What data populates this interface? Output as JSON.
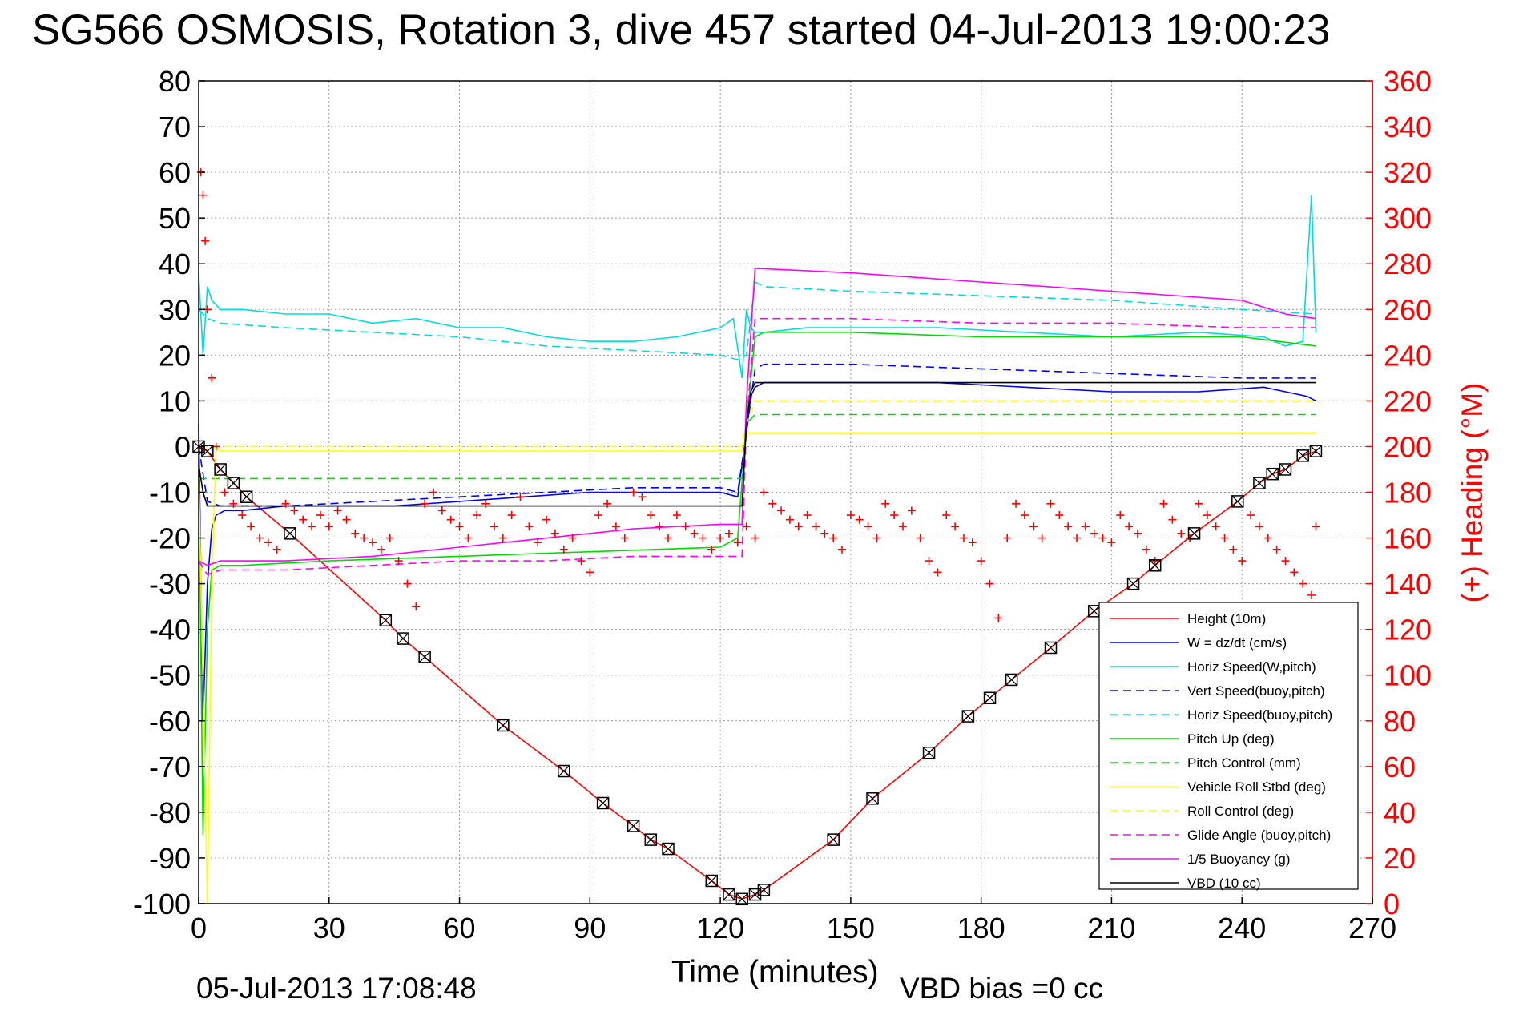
{
  "title": "SG566 OSMOSIS, Rotation 3, dive 457 started 04-Jul-2013 19:00:23",
  "footer_left": "05-Jul-2013 17:08:48",
  "footer_right": "VBD bias =0 cc",
  "colors": {
    "red": "#ff0000",
    "blue": "#0000ff",
    "cyan": "#00dddd",
    "green": "#00dd00",
    "yellow": "#ffff00",
    "magenta": "#ff00ff",
    "black": "#000000",
    "grid": "#9a9a9a"
  },
  "chart_data": {
    "type": "line",
    "xlabel": "Time (minutes)",
    "ylabel": "",
    "y2label": "(+) Heading (°M)",
    "xlim": [
      0,
      270
    ],
    "ylim": [
      -100,
      80
    ],
    "y2lim": [
      0,
      360
    ],
    "grid": true,
    "legend_position": "bottom-right",
    "xticks": [
      0,
      30,
      60,
      90,
      120,
      150,
      180,
      210,
      240,
      270
    ],
    "yticks": [
      80,
      70,
      60,
      50,
      40,
      30,
      20,
      10,
      0,
      -10,
      -20,
      -30,
      -40,
      -50,
      -60,
      -70,
      -80,
      -90,
      -100
    ],
    "y2ticks": [
      360,
      340,
      320,
      300,
      280,
      260,
      240,
      220,
      200,
      180,
      160,
      140,
      120,
      100,
      80,
      60,
      40,
      20,
      0
    ],
    "series": [
      {
        "name": "Height (10m)",
        "color": "#ff0000",
        "style": "solid",
        "x": [
          0,
          2,
          5,
          8,
          11,
          21,
          43,
          47,
          52,
          70,
          84,
          93,
          100,
          104,
          108,
          118,
          122,
          125,
          128,
          130,
          146,
          155,
          168,
          177,
          182,
          187,
          196,
          206,
          215,
          220,
          229,
          239,
          244,
          247,
          250,
          254,
          257
        ],
        "y": [
          0,
          -1,
          -5,
          -8,
          -11,
          -19,
          -38,
          -42,
          -46,
          -61,
          -71,
          -78,
          -83,
          -86,
          -88,
          -95,
          -98,
          -99,
          -98,
          -97,
          -86,
          -77,
          -67,
          -59,
          -55,
          -51,
          -44,
          -36,
          -30,
          -26,
          -19,
          -12,
          -8,
          -6,
          -5,
          -2,
          -1
        ]
      },
      {
        "name": "W = dz/dt (cm/s)",
        "color": "#0000ff",
        "style": "solid",
        "x": [
          0,
          1,
          2,
          3,
          4,
          6,
          10,
          20,
          30,
          45,
          60,
          75,
          90,
          105,
          120,
          124,
          126,
          127,
          128,
          130,
          150,
          170,
          190,
          210,
          230,
          245,
          250,
          255,
          257
        ],
        "y": [
          5,
          -60,
          -30,
          -18,
          -15,
          -14,
          -14,
          -13,
          -13,
          -13,
          -12,
          -11,
          -10,
          -10,
          -10,
          -11,
          3,
          11,
          13,
          14,
          14,
          14,
          13,
          12,
          12,
          13,
          12,
          11,
          10
        ]
      },
      {
        "name": "Horiz Speed(W,pitch)",
        "color": "#00dddd",
        "style": "solid",
        "x": [
          0,
          1,
          2,
          3,
          5,
          10,
          20,
          30,
          40,
          50,
          60,
          70,
          80,
          90,
          100,
          110,
          120,
          123,
          125,
          126,
          127,
          128,
          130,
          140,
          150,
          170,
          190,
          210,
          230,
          245,
          250,
          254,
          256,
          257
        ],
        "y": [
          38,
          20,
          35,
          32,
          30,
          30,
          29,
          29,
          27,
          28,
          26,
          26,
          24,
          23,
          23,
          24,
          26,
          28,
          15,
          30,
          26,
          25,
          25,
          26,
          26,
          26,
          25,
          24,
          25,
          24,
          22,
          23,
          55,
          25
        ]
      },
      {
        "name": "Vert Speed(buoy,pitch)",
        "color": "#0000ff",
        "style": "dashed",
        "x": [
          0,
          2,
          5,
          20,
          40,
          60,
          80,
          100,
          120,
          124,
          126,
          128,
          130,
          150,
          180,
          210,
          240,
          257
        ],
        "y": [
          0,
          -12,
          -13,
          -13,
          -12,
          -11,
          -10,
          -9,
          -9,
          -10,
          3,
          17,
          18,
          18,
          17,
          16,
          15,
          15
        ]
      },
      {
        "name": "Horiz Speed(buoy,pitch)",
        "color": "#00dddd",
        "style": "dashed",
        "x": [
          0,
          2,
          5,
          20,
          40,
          60,
          80,
          100,
          120,
          124,
          126,
          128,
          130,
          150,
          180,
          210,
          240,
          257
        ],
        "y": [
          30,
          28,
          27,
          26,
          25,
          24,
          22,
          21,
          20,
          19,
          20,
          36,
          35,
          34,
          33,
          32,
          30,
          29
        ]
      },
      {
        "name": "Pitch Up (deg)",
        "color": "#00dd00",
        "style": "solid",
        "x": [
          0,
          1,
          2,
          3,
          5,
          10,
          30,
          60,
          90,
          120,
          124,
          126,
          128,
          130,
          150,
          180,
          210,
          240,
          257
        ],
        "y": [
          -5,
          -85,
          -40,
          -27,
          -26,
          -26,
          -25,
          -24,
          -23,
          -22,
          -20,
          5,
          24,
          25,
          25,
          24,
          24,
          24,
          22
        ]
      },
      {
        "name": "Pitch Control (mm)",
        "color": "#00dd00",
        "style": "dashed",
        "x": [
          0,
          2,
          5,
          30,
          60,
          90,
          120,
          125,
          126,
          128,
          150,
          180,
          210,
          240,
          257
        ],
        "y": [
          -7,
          -7,
          -7,
          -7,
          -7,
          -7,
          -7,
          -7,
          5,
          7,
          7,
          7,
          7,
          7,
          7
        ]
      },
      {
        "name": "Vehicle Roll Stbd (deg)",
        "color": "#ffff00",
        "style": "solid",
        "x": [
          0,
          2,
          3,
          4,
          5,
          10,
          30,
          60,
          90,
          120,
          125,
          126,
          128,
          150,
          180,
          210,
          240,
          257
        ],
        "y": [
          -5,
          -100,
          -30,
          0,
          -1,
          -1,
          -1,
          -1,
          -1,
          -1,
          -1,
          3,
          3,
          3,
          3,
          3,
          3,
          3
        ]
      },
      {
        "name": "Roll Control (deg)",
        "color": "#ffff00",
        "style": "dashed",
        "x": [
          0,
          2,
          5,
          30,
          60,
          90,
          120,
          125,
          126,
          128,
          150,
          180,
          210,
          240,
          257
        ],
        "y": [
          0,
          0,
          0,
          0,
          0,
          0,
          0,
          0,
          5,
          10,
          10,
          10,
          10,
          10,
          10
        ]
      },
      {
        "name": "Glide Angle (buoy,pitch)",
        "color": "#ff00ff",
        "style": "dashed",
        "x": [
          0,
          2,
          5,
          20,
          40,
          60,
          80,
          100,
          120,
          125,
          126,
          128,
          150,
          180,
          210,
          240,
          257
        ],
        "y": [
          -25,
          -28,
          -27,
          -27,
          -26,
          -25,
          -25,
          -24,
          -24,
          -24,
          5,
          28,
          28,
          27,
          27,
          26,
          26
        ]
      },
      {
        "name": "1/5 Buoyancy (g)",
        "color": "#ff00ff",
        "style": "solid",
        "x": [
          0,
          2,
          5,
          20,
          40,
          60,
          80,
          100,
          120,
          125,
          126,
          128,
          150,
          180,
          210,
          240,
          250,
          257
        ],
        "y": [
          -25,
          -26,
          -25,
          -25,
          -24,
          -22,
          -20,
          -18,
          -17,
          -17,
          10,
          39,
          38,
          36,
          34,
          32,
          29,
          28
        ]
      },
      {
        "name": "VBD (10 cc)",
        "color": "#000000",
        "style": "solid",
        "x": [
          0,
          1,
          2,
          10,
          60,
          120,
          124,
          125,
          126,
          127,
          128,
          150,
          200,
          257
        ],
        "y": [
          -4,
          -10,
          -13,
          -13,
          -13,
          -13,
          -13,
          -13,
          5,
          12,
          14,
          14,
          14,
          14
        ]
      }
    ],
    "heading_markers": {
      "name": "(+) Heading (°M)",
      "color": "#ff0000",
      "axis": "right",
      "x": [
        0.5,
        1,
        1.5,
        2,
        3,
        4,
        6,
        8,
        10,
        12,
        14,
        16,
        18,
        20,
        22,
        24,
        26,
        28,
        30,
        32,
        34,
        36,
        38,
        40,
        42,
        44,
        46,
        48,
        50,
        52,
        54,
        56,
        58,
        60,
        62,
        64,
        66,
        68,
        70,
        72,
        74,
        76,
        78,
        80,
        82,
        84,
        86,
        88,
        90,
        92,
        94,
        96,
        98,
        100,
        102,
        104,
        106,
        108,
        110,
        112,
        114,
        116,
        118,
        120,
        122,
        124,
        126,
        128,
        130,
        132,
        134,
        136,
        138,
        140,
        142,
        144,
        146,
        148,
        150,
        152,
        154,
        156,
        158,
        160,
        162,
        164,
        166,
        168,
        170,
        172,
        174,
        176,
        178,
        180,
        182,
        184,
        186,
        188,
        190,
        192,
        194,
        196,
        198,
        200,
        202,
        204,
        206,
        208,
        210,
        212,
        214,
        216,
        218,
        220,
        222,
        224,
        226,
        228,
        230,
        232,
        234,
        236,
        238,
        240,
        242,
        244,
        246,
        248,
        250,
        252,
        254,
        256,
        257
      ],
      "y": [
        320,
        310,
        290,
        260,
        230,
        200,
        180,
        175,
        170,
        165,
        160,
        158,
        155,
        175,
        172,
        168,
        165,
        170,
        165,
        172,
        168,
        162,
        160,
        158,
        155,
        160,
        150,
        140,
        130,
        175,
        180,
        172,
        168,
        165,
        160,
        170,
        175,
        165,
        160,
        170,
        178,
        165,
        158,
        168,
        162,
        155,
        160,
        150,
        145,
        170,
        175,
        165,
        160,
        180,
        178,
        170,
        165,
        160,
        170,
        165,
        162,
        160,
        155,
        160,
        162,
        158,
        165,
        160,
        180,
        175,
        172,
        168,
        165,
        170,
        165,
        162,
        160,
        155,
        170,
        168,
        165,
        160,
        175,
        170,
        165,
        172,
        160,
        150,
        145,
        170,
        165,
        160,
        158,
        150,
        140,
        125,
        160,
        175,
        170,
        165,
        160,
        175,
        170,
        165,
        160,
        165,
        162,
        160,
        158,
        170,
        165,
        162,
        155,
        150,
        175,
        168,
        162,
        160,
        175,
        170,
        165,
        160,
        155,
        150,
        170,
        165,
        160,
        155,
        150,
        145,
        140,
        135,
        165
      ]
    }
  }
}
